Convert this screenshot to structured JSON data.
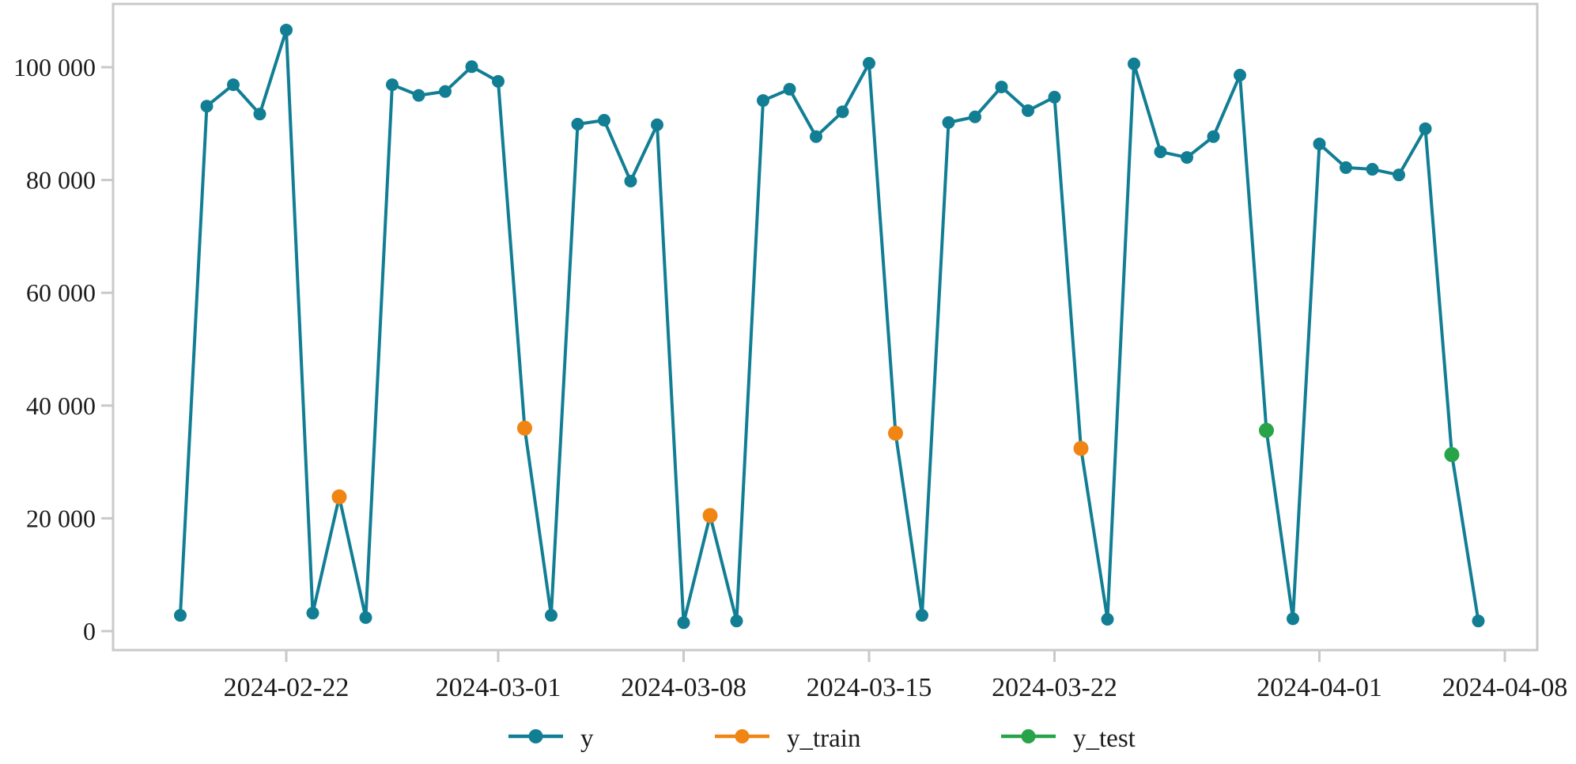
{
  "chart_data": {
    "type": "line",
    "title": "",
    "x_axis": {
      "origin_date": "2024-02-18",
      "tick_dates": [
        "2024-02-22",
        "2024-03-01",
        "2024-03-08",
        "2024-03-15",
        "2024-03-22",
        "2024-04-01",
        "2024-04-08"
      ],
      "tick_labels": [
        "2024-02-22",
        "2024-03-01",
        "2024-03-08",
        "2024-03-15",
        "2024-03-22",
        "2024-04-01",
        "2024-04-08"
      ]
    },
    "y_axis": {
      "tick_values": [
        0,
        20000,
        40000,
        60000,
        80000,
        100000
      ],
      "tick_labels": [
        "0",
        "20 000",
        "40 000",
        "60 000",
        "80 000",
        "100 000"
      ],
      "range": [
        0,
        111000
      ]
    },
    "legend_position": "bottom",
    "grid": false,
    "series": [
      {
        "name": "y",
        "color": "#127E94",
        "dates": [
          "2024-02-18",
          "2024-02-19",
          "2024-02-20",
          "2024-02-21",
          "2024-02-22",
          "2024-02-23",
          "2024-02-24",
          "2024-02-25",
          "2024-02-26",
          "2024-02-27",
          "2024-02-28",
          "2024-02-29",
          "2024-03-01",
          "2024-03-02",
          "2024-03-03",
          "2024-03-04",
          "2024-03-05",
          "2024-03-06",
          "2024-03-07",
          "2024-03-08",
          "2024-03-09",
          "2024-03-10",
          "2024-03-11",
          "2024-03-12",
          "2024-03-13",
          "2024-03-14",
          "2024-03-15",
          "2024-03-16",
          "2024-03-17",
          "2024-03-18",
          "2024-03-19",
          "2024-03-20",
          "2024-03-21",
          "2024-03-22",
          "2024-03-23",
          "2024-03-24",
          "2024-03-25",
          "2024-03-26",
          "2024-03-27",
          "2024-03-28",
          "2024-03-29",
          "2024-03-30",
          "2024-03-31",
          "2024-04-01",
          "2024-04-02",
          "2024-04-03",
          "2024-04-04",
          "2024-04-05",
          "2024-04-06",
          "2024-04-07"
        ],
        "values": [
          2800,
          93100,
          96900,
          91700,
          106600,
          3200,
          23800,
          2400,
          96900,
          95000,
          95700,
          100100,
          97500,
          36000,
          2800,
          89900,
          90600,
          79800,
          89800,
          1500,
          20500,
          1800,
          94100,
          96100,
          87700,
          92100,
          100700,
          35100,
          2800,
          90200,
          91200,
          96500,
          92300,
          94700,
          32400,
          2100,
          100600,
          85000,
          84000,
          87700,
          98600,
          35600,
          2200,
          86400,
          82200,
          81900,
          80900,
          89100,
          31300,
          1800
        ]
      },
      {
        "name": "y_train",
        "color": "#F08514",
        "dates": [
          "2024-02-24",
          "2024-03-02",
          "2024-03-09",
          "2024-03-16",
          "2024-03-23"
        ],
        "values": [
          23800,
          36000,
          20500,
          35100,
          32400
        ]
      },
      {
        "name": "y_test",
        "color": "#28A448",
        "dates": [
          "2024-03-30",
          "2024-04-06"
        ],
        "values": [
          35600,
          31300
        ]
      }
    ],
    "style": {
      "axis_color": "#C9C9C9",
      "text_color": "#1C1C1C",
      "background": "#FFFFFF"
    }
  }
}
